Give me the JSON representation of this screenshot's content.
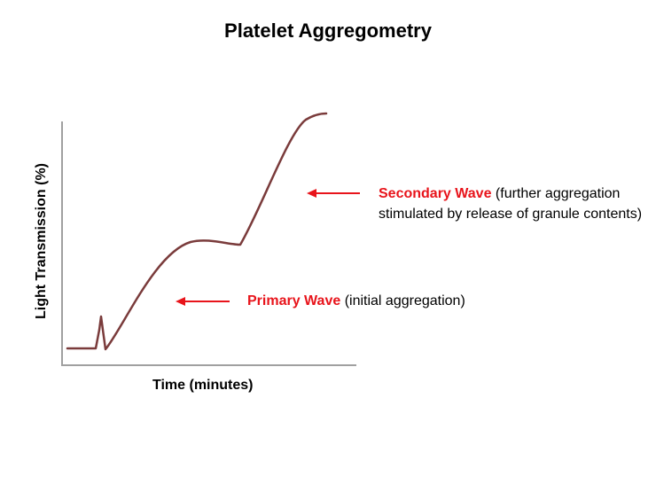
{
  "title": "Platelet Aggregometry",
  "axes": {
    "ylabel": "Light Transmission (%)",
    "xlabel": "Time (minutes)"
  },
  "annotations": {
    "secondary": {
      "highlight": "Secondary Wave",
      "text": " (further aggregation stimulated by release of granule contents)"
    },
    "primary": {
      "highlight": "Primary Wave",
      "text": " (initial aggregation)"
    }
  },
  "colors": {
    "curve": "#7a3b3b",
    "arrow": "#e8141b",
    "highlight": "#e8141b",
    "axis": "#a0a0a0"
  }
}
